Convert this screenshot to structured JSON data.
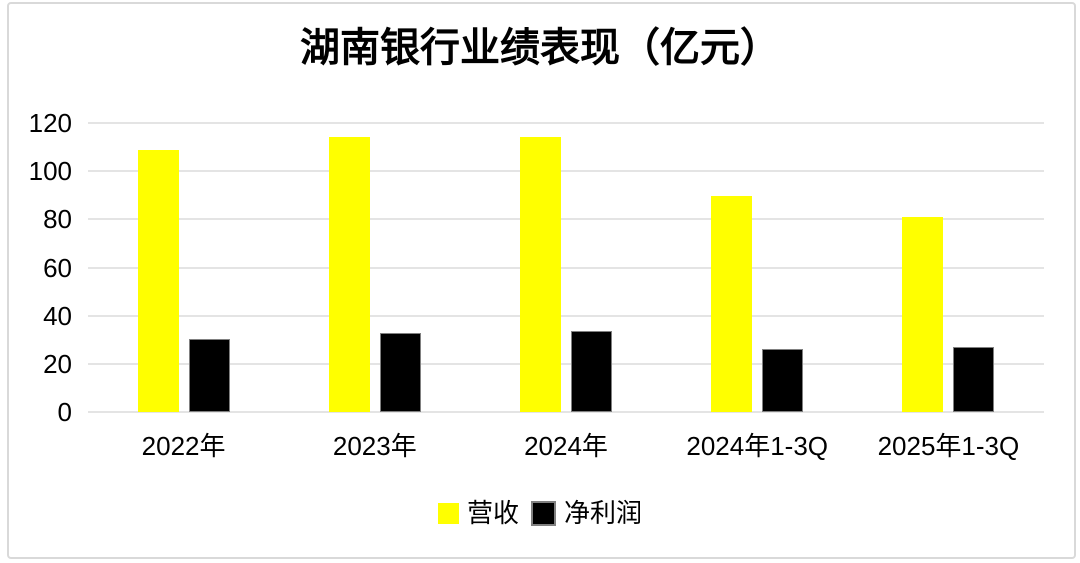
{
  "chart_data": {
    "type": "bar",
    "title": "湖南银行业绩表现（亿元）",
    "categories": [
      "2022年",
      "2023年",
      "2024年",
      "2024年1-3Q",
      "2025年1-3Q"
    ],
    "series": [
      {
        "id": "revenue",
        "name": "营收",
        "color": "#FFFF00",
        "outlined": false,
        "values": [
          109,
          114,
          114,
          89.5,
          81
        ]
      },
      {
        "id": "net-profit",
        "name": "净利润",
        "color": "#000000",
        "outlined": true,
        "values": [
          30.5,
          33,
          33.5,
          26,
          27
        ]
      }
    ],
    "ylim": [
      0,
      120
    ],
    "yticks": [
      0,
      20,
      40,
      60,
      80,
      100,
      120
    ],
    "grid": true,
    "legend_position": "bottom",
    "unit": "亿元"
  },
  "colors": {
    "revenue": "#FFFF00",
    "net_profit": "#000000",
    "gridline": "#e4e4e4",
    "frame_border": "#d9d9d9",
    "bar_outline": "#808080",
    "text": "#000000",
    "background": "#ffffff"
  }
}
